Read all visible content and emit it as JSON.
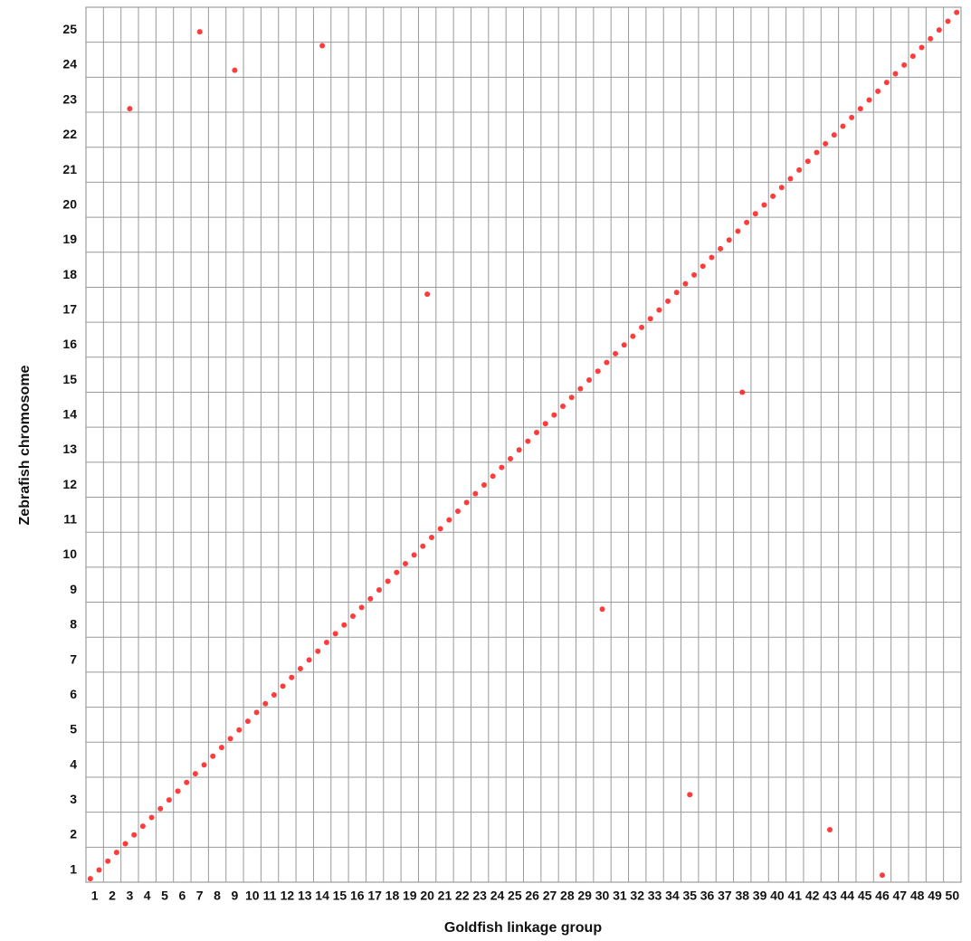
{
  "chart_data": {
    "type": "scatter",
    "x_label": "Goldfish linkage group",
    "y_label": "Zebrafish chromosome",
    "xlim": [
      0.5,
      50.5
    ],
    "ylim": [
      0.5,
      25.5
    ],
    "xticks": [
      1,
      2,
      3,
      4,
      5,
      6,
      7,
      8,
      9,
      10,
      11,
      12,
      13,
      14,
      15,
      16,
      17,
      18,
      19,
      20,
      21,
      22,
      23,
      24,
      25,
      26,
      27,
      28,
      29,
      30,
      31,
      32,
      33,
      34,
      35,
      36,
      37,
      38,
      39,
      40,
      41,
      42,
      43,
      44,
      45,
      46,
      47,
      48,
      49,
      50
    ],
    "yticks": [
      1,
      2,
      3,
      4,
      5,
      6,
      7,
      8,
      9,
      10,
      11,
      12,
      13,
      14,
      15,
      16,
      17,
      18,
      19,
      20,
      21,
      22,
      23,
      24,
      25
    ],
    "grid": true,
    "color": "#ff1a1a",
    "x": [
      0.75,
      1.25,
      1.75,
      2.25,
      2.75,
      3.25,
      3.75,
      4.25,
      4.75,
      5.25,
      5.75,
      6.25,
      6.75,
      7.25,
      7.75,
      8.25,
      8.75,
      9.25,
      9.75,
      10.25,
      10.75,
      11.25,
      11.75,
      12.25,
      12.75,
      13.25,
      13.75,
      14.25,
      14.75,
      15.25,
      15.75,
      16.25,
      16.75,
      17.25,
      17.75,
      18.25,
      18.75,
      19.25,
      19.75,
      20.25,
      20.75,
      21.25,
      21.75,
      22.25,
      22.75,
      23.25,
      23.75,
      24.25,
      24.75,
      25.25,
      25.75,
      26.25,
      26.75,
      27.25,
      27.75,
      28.25,
      28.75,
      29.25,
      29.75,
      30.25,
      30.75,
      31.25,
      31.75,
      32.25,
      32.75,
      33.25,
      33.75,
      34.25,
      34.75,
      35.25,
      35.75,
      36.25,
      36.75,
      37.25,
      37.75,
      38.25,
      38.75,
      39.25,
      39.75,
      40.25,
      40.75,
      41.25,
      41.75,
      42.25,
      42.75,
      43.25,
      43.75,
      44.25,
      44.75,
      45.25,
      45.75,
      46.25,
      46.75,
      47.25,
      47.75,
      48.25,
      48.75,
      49.25,
      49.75,
      50.25,
      7,
      9,
      35,
      43,
      20,
      46,
      3,
      30,
      38,
      14
    ],
    "y": [
      0.6,
      0.85,
      1.1,
      1.35,
      1.6,
      1.85,
      2.1,
      2.35,
      2.6,
      2.85,
      3.1,
      3.35,
      3.6,
      3.85,
      4.1,
      4.35,
      4.6,
      4.85,
      5.1,
      5.35,
      5.6,
      5.85,
      6.1,
      6.35,
      6.6,
      6.85,
      7.1,
      7.35,
      7.6,
      7.85,
      8.1,
      8.35,
      8.6,
      8.85,
      9.1,
      9.35,
      9.6,
      9.85,
      10.1,
      10.35,
      10.6,
      10.85,
      11.1,
      11.35,
      11.6,
      11.85,
      12.1,
      12.35,
      12.6,
      12.85,
      13.1,
      13.35,
      13.6,
      13.85,
      14.1,
      14.35,
      14.6,
      14.85,
      15.1,
      15.35,
      15.6,
      15.85,
      16.1,
      16.35,
      16.6,
      16.85,
      17.1,
      17.35,
      17.6,
      17.85,
      18.1,
      18.35,
      18.6,
      18.85,
      19.1,
      19.35,
      19.6,
      19.85,
      20.1,
      20.35,
      20.6,
      20.85,
      21.1,
      21.35,
      21.6,
      21.85,
      22.1,
      22.35,
      22.6,
      22.85,
      23.1,
      23.35,
      23.6,
      23.85,
      24.1,
      24.35,
      24.6,
      24.85,
      25.1,
      25.35,
      24.8,
      23.7,
      3,
      2,
      17.3,
      0.7,
      22.6,
      8.3,
      14.5,
      24.4
    ]
  }
}
